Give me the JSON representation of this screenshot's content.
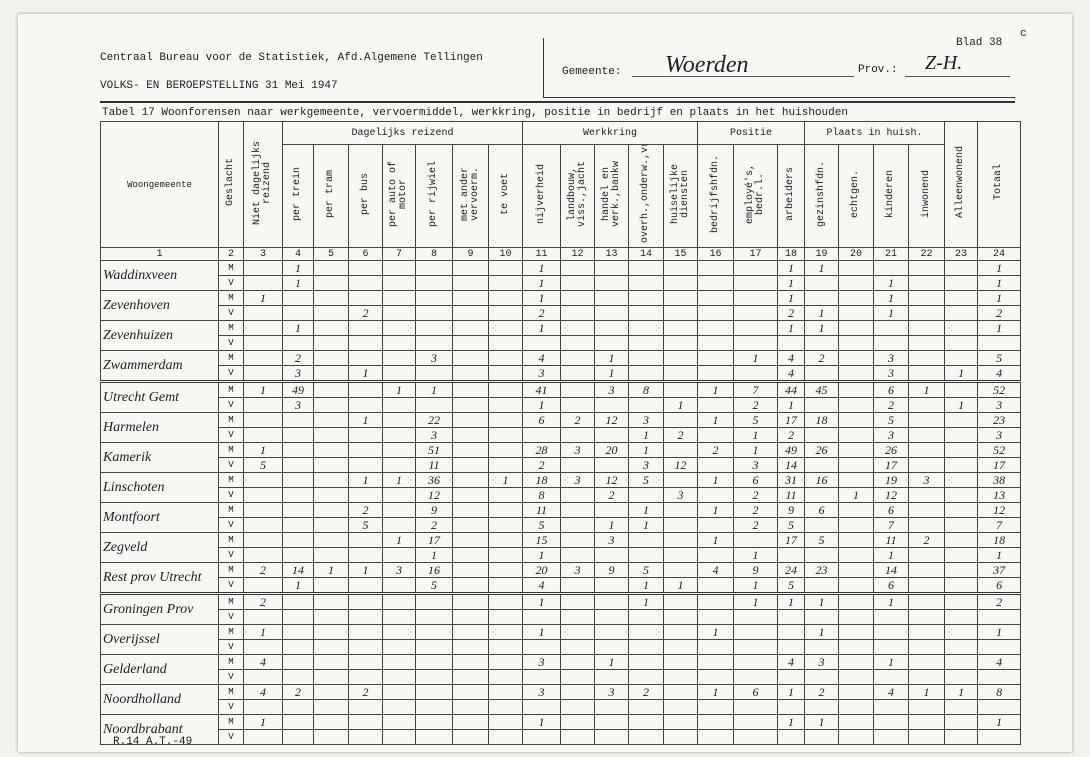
{
  "header": {
    "institute": "Centraal Bureau voor de Statistiek, Afd.Algemene Tellingen",
    "census": "VOLKS- EN BEROEPSTELLING 31 Mei 1947",
    "sheet": "Blad 38",
    "sheet_mark": "c",
    "municipality_label": "Gemeente:",
    "municipality": "Woerden",
    "province_label": "Prov.:",
    "province": "Z-H.",
    "table_title": "Tabel 17 Woonforensen naar werkgemeente, vervoermiddel, werkkring, positie in bedrijf en plaats in het huishouden"
  },
  "table": {
    "groups": [
      "Dagelijks reizend",
      "Werkkring",
      "Positie",
      "Plaats in huish."
    ],
    "columns": [
      "Woongemeente",
      "Geslacht",
      "Niet dagelijks reizend",
      "per trein",
      "per tram",
      "per bus",
      "per auto of motor",
      "per rijwiel",
      "met ander vervoerm.",
      "te voet",
      "nijverheid",
      "landbouw, viss.,jacht",
      "handel en verk.,bankw",
      "overh.,onderw.,vr.b.",
      "huiselijke diensten",
      "bedrijfshfdn.",
      "employé's, bedr.l.",
      "arbeiders",
      "gezinshfdn.",
      "echtgen.",
      "kinderen",
      "inwonend",
      "Alleenwonend",
      "Totaal"
    ],
    "column_numbers": [
      1,
      2,
      3,
      4,
      5,
      6,
      7,
      8,
      9,
      10,
      11,
      12,
      13,
      14,
      15,
      16,
      17,
      18,
      19,
      20,
      21,
      22,
      23,
      24
    ],
    "rows": [
      {
        "municipality": "Waddinxveen",
        "entries": [
          {
            "sex": "M",
            "values": [
              null,
              1,
              null,
              null,
              null,
              null,
              null,
              null,
              1,
              null,
              null,
              null,
              null,
              null,
              null,
              1,
              1,
              null,
              null,
              null,
              null,
              1
            ]
          },
          {
            "sex": "V",
            "values": [
              null,
              1,
              null,
              null,
              null,
              null,
              null,
              null,
              1,
              null,
              null,
              null,
              null,
              null,
              null,
              1,
              null,
              null,
              1,
              null,
              null,
              1
            ]
          }
        ]
      },
      {
        "municipality": "Zevenhoven",
        "entries": [
          {
            "sex": "M",
            "values": [
              1,
              null,
              null,
              null,
              null,
              null,
              null,
              null,
              1,
              null,
              null,
              null,
              null,
              null,
              null,
              1,
              null,
              null,
              1,
              null,
              null,
              1
            ]
          },
          {
            "sex": "V",
            "values": [
              null,
              null,
              null,
              2,
              null,
              null,
              null,
              null,
              2,
              null,
              null,
              null,
              null,
              null,
              null,
              2,
              1,
              null,
              1,
              null,
              null,
              2
            ]
          }
        ]
      },
      {
        "municipality": "Zevenhuizen",
        "entries": [
          {
            "sex": "M",
            "values": [
              null,
              1,
              null,
              null,
              null,
              null,
              null,
              null,
              1,
              null,
              null,
              null,
              null,
              null,
              null,
              1,
              1,
              null,
              null,
              null,
              null,
              1
            ]
          },
          {
            "sex": "V",
            "values": [
              null,
              null,
              null,
              null,
              null,
              null,
              null,
              null,
              null,
              null,
              null,
              null,
              null,
              null,
              null,
              null,
              null,
              null,
              null,
              null,
              null,
              null
            ]
          }
        ]
      },
      {
        "municipality": "Zwammerdam",
        "entries": [
          {
            "sex": "M",
            "values": [
              null,
              2,
              null,
              null,
              null,
              3,
              null,
              null,
              4,
              null,
              1,
              null,
              null,
              null,
              1,
              4,
              2,
              null,
              3,
              null,
              null,
              5
            ]
          },
          {
            "sex": "V",
            "values": [
              null,
              3,
              null,
              1,
              null,
              null,
              null,
              null,
              3,
              null,
              1,
              null,
              null,
              null,
              null,
              4,
              null,
              null,
              3,
              null,
              1,
              4
            ]
          }
        ]
      },
      {
        "municipality": "Utrecht Gemt",
        "entries": [
          {
            "sex": "M",
            "values": [
              1,
              49,
              null,
              null,
              1,
              1,
              null,
              null,
              41,
              null,
              3,
              8,
              null,
              1,
              7,
              44,
              45,
              null,
              6,
              1,
              null,
              52
            ]
          },
          {
            "sex": "V",
            "values": [
              null,
              3,
              null,
              null,
              null,
              null,
              null,
              null,
              1,
              null,
              null,
              null,
              1,
              null,
              2,
              1,
              null,
              null,
              2,
              null,
              1,
              3
            ]
          }
        ]
      },
      {
        "municipality": "Harmelen",
        "entries": [
          {
            "sex": "M",
            "values": [
              null,
              null,
              null,
              1,
              null,
              22,
              null,
              null,
              6,
              2,
              12,
              3,
              null,
              1,
              5,
              17,
              18,
              null,
              5,
              null,
              null,
              23
            ]
          },
          {
            "sex": "V",
            "values": [
              null,
              null,
              null,
              null,
              null,
              3,
              null,
              null,
              null,
              null,
              null,
              1,
              2,
              null,
              1,
              2,
              null,
              null,
              3,
              null,
              null,
              3
            ]
          }
        ]
      },
      {
        "municipality": "Kamerik",
        "entries": [
          {
            "sex": "M",
            "values": [
              1,
              null,
              null,
              null,
              null,
              51,
              null,
              null,
              28,
              3,
              20,
              1,
              null,
              2,
              1,
              49,
              26,
              null,
              26,
              null,
              null,
              52
            ]
          },
          {
            "sex": "V",
            "values": [
              5,
              null,
              null,
              null,
              null,
              11,
              null,
              null,
              2,
              null,
              null,
              3,
              12,
              null,
              3,
              14,
              null,
              null,
              17,
              null,
              null,
              17
            ]
          }
        ]
      },
      {
        "municipality": "Linschoten",
        "entries": [
          {
            "sex": "M",
            "values": [
              null,
              null,
              null,
              1,
              1,
              36,
              null,
              1,
              18,
              3,
              12,
              5,
              null,
              1,
              6,
              31,
              16,
              null,
              19,
              3,
              null,
              38
            ]
          },
          {
            "sex": "V",
            "values": [
              null,
              null,
              null,
              null,
              null,
              12,
              null,
              null,
              8,
              null,
              2,
              null,
              3,
              null,
              2,
              11,
              null,
              1,
              12,
              null,
              null,
              13
            ]
          }
        ]
      },
      {
        "municipality": "Montfoort",
        "entries": [
          {
            "sex": "M",
            "values": [
              null,
              null,
              null,
              2,
              null,
              9,
              null,
              null,
              11,
              null,
              null,
              1,
              null,
              1,
              2,
              9,
              6,
              null,
              6,
              null,
              null,
              12
            ]
          },
          {
            "sex": "V",
            "values": [
              null,
              null,
              null,
              5,
              null,
              2,
              null,
              null,
              5,
              null,
              1,
              1,
              null,
              null,
              2,
              5,
              null,
              null,
              7,
              null,
              null,
              7
            ]
          }
        ]
      },
      {
        "municipality": "Zegveld",
        "entries": [
          {
            "sex": "M",
            "values": [
              null,
              null,
              null,
              null,
              1,
              17,
              null,
              null,
              15,
              null,
              3,
              null,
              null,
              1,
              null,
              17,
              5,
              null,
              11,
              2,
              null,
              18
            ]
          },
          {
            "sex": "V",
            "values": [
              null,
              null,
              null,
              null,
              null,
              1,
              null,
              null,
              1,
              null,
              null,
              null,
              null,
              null,
              1,
              null,
              null,
              null,
              1,
              null,
              null,
              1
            ]
          }
        ]
      },
      {
        "municipality": "Rest prov Utrecht",
        "entries": [
          {
            "sex": "M",
            "values": [
              2,
              14,
              1,
              1,
              3,
              16,
              null,
              null,
              20,
              3,
              9,
              5,
              null,
              4,
              9,
              24,
              23,
              null,
              14,
              null,
              null,
              37
            ]
          },
          {
            "sex": "V",
            "values": [
              null,
              1,
              null,
              null,
              null,
              5,
              null,
              null,
              4,
              null,
              null,
              1,
              1,
              null,
              1,
              5,
              null,
              null,
              6,
              null,
              null,
              6
            ]
          }
        ]
      },
      {
        "municipality": "Groningen Prov",
        "entries": [
          {
            "sex": "M",
            "values": [
              2,
              null,
              null,
              null,
              null,
              null,
              null,
              null,
              1,
              null,
              null,
              1,
              null,
              null,
              1,
              1,
              1,
              null,
              1,
              null,
              null,
              2
            ]
          },
          {
            "sex": "V",
            "values": [
              null,
              null,
              null,
              null,
              null,
              null,
              null,
              null,
              null,
              null,
              null,
              null,
              null,
              null,
              null,
              null,
              null,
              null,
              null,
              null,
              null,
              null
            ]
          }
        ]
      },
      {
        "municipality": "Overijssel",
        "entries": [
          {
            "sex": "M",
            "values": [
              1,
              null,
              null,
              null,
              null,
              null,
              null,
              null,
              1,
              null,
              null,
              null,
              null,
              1,
              null,
              null,
              1,
              null,
              null,
              null,
              null,
              1
            ]
          },
          {
            "sex": "V",
            "values": [
              null,
              null,
              null,
              null,
              null,
              null,
              null,
              null,
              null,
              null,
              null,
              null,
              null,
              null,
              null,
              null,
              null,
              null,
              null,
              null,
              null,
              null
            ]
          }
        ]
      },
      {
        "municipality": "Gelderland",
        "entries": [
          {
            "sex": "M",
            "values": [
              4,
              null,
              null,
              null,
              null,
              null,
              null,
              null,
              3,
              null,
              1,
              null,
              null,
              null,
              null,
              4,
              3,
              null,
              1,
              null,
              null,
              4
            ]
          },
          {
            "sex": "V",
            "values": [
              null,
              null,
              null,
              null,
              null,
              null,
              null,
              null,
              null,
              null,
              null,
              null,
              null,
              null,
              null,
              null,
              null,
              null,
              null,
              null,
              null,
              null
            ]
          }
        ]
      },
      {
        "municipality": "Noordholland",
        "entries": [
          {
            "sex": "M",
            "values": [
              4,
              2,
              null,
              2,
              null,
              null,
              null,
              null,
              3,
              null,
              3,
              2,
              null,
              1,
              6,
              1,
              2,
              null,
              4,
              1,
              1,
              8
            ]
          },
          {
            "sex": "V",
            "values": [
              null,
              null,
              null,
              null,
              null,
              null,
              null,
              null,
              null,
              null,
              null,
              null,
              null,
              null,
              null,
              null,
              null,
              null,
              null,
              null,
              null,
              null
            ]
          }
        ]
      },
      {
        "municipality": "Noordbrabant",
        "entries": [
          {
            "sex": "M",
            "values": [
              1,
              null,
              null,
              null,
              null,
              null,
              null,
              null,
              1,
              null,
              null,
              null,
              null,
              null,
              null,
              1,
              1,
              null,
              null,
              null,
              null,
              1
            ]
          },
          {
            "sex": "V",
            "values": [
              null,
              null,
              null,
              null,
              null,
              null,
              null,
              null,
              null,
              null,
              null,
              null,
              null,
              null,
              null,
              null,
              null,
              null,
              null,
              null,
              null,
              null
            ]
          }
        ]
      }
    ]
  },
  "footer": {
    "form": "R.14 A.T.-49"
  }
}
